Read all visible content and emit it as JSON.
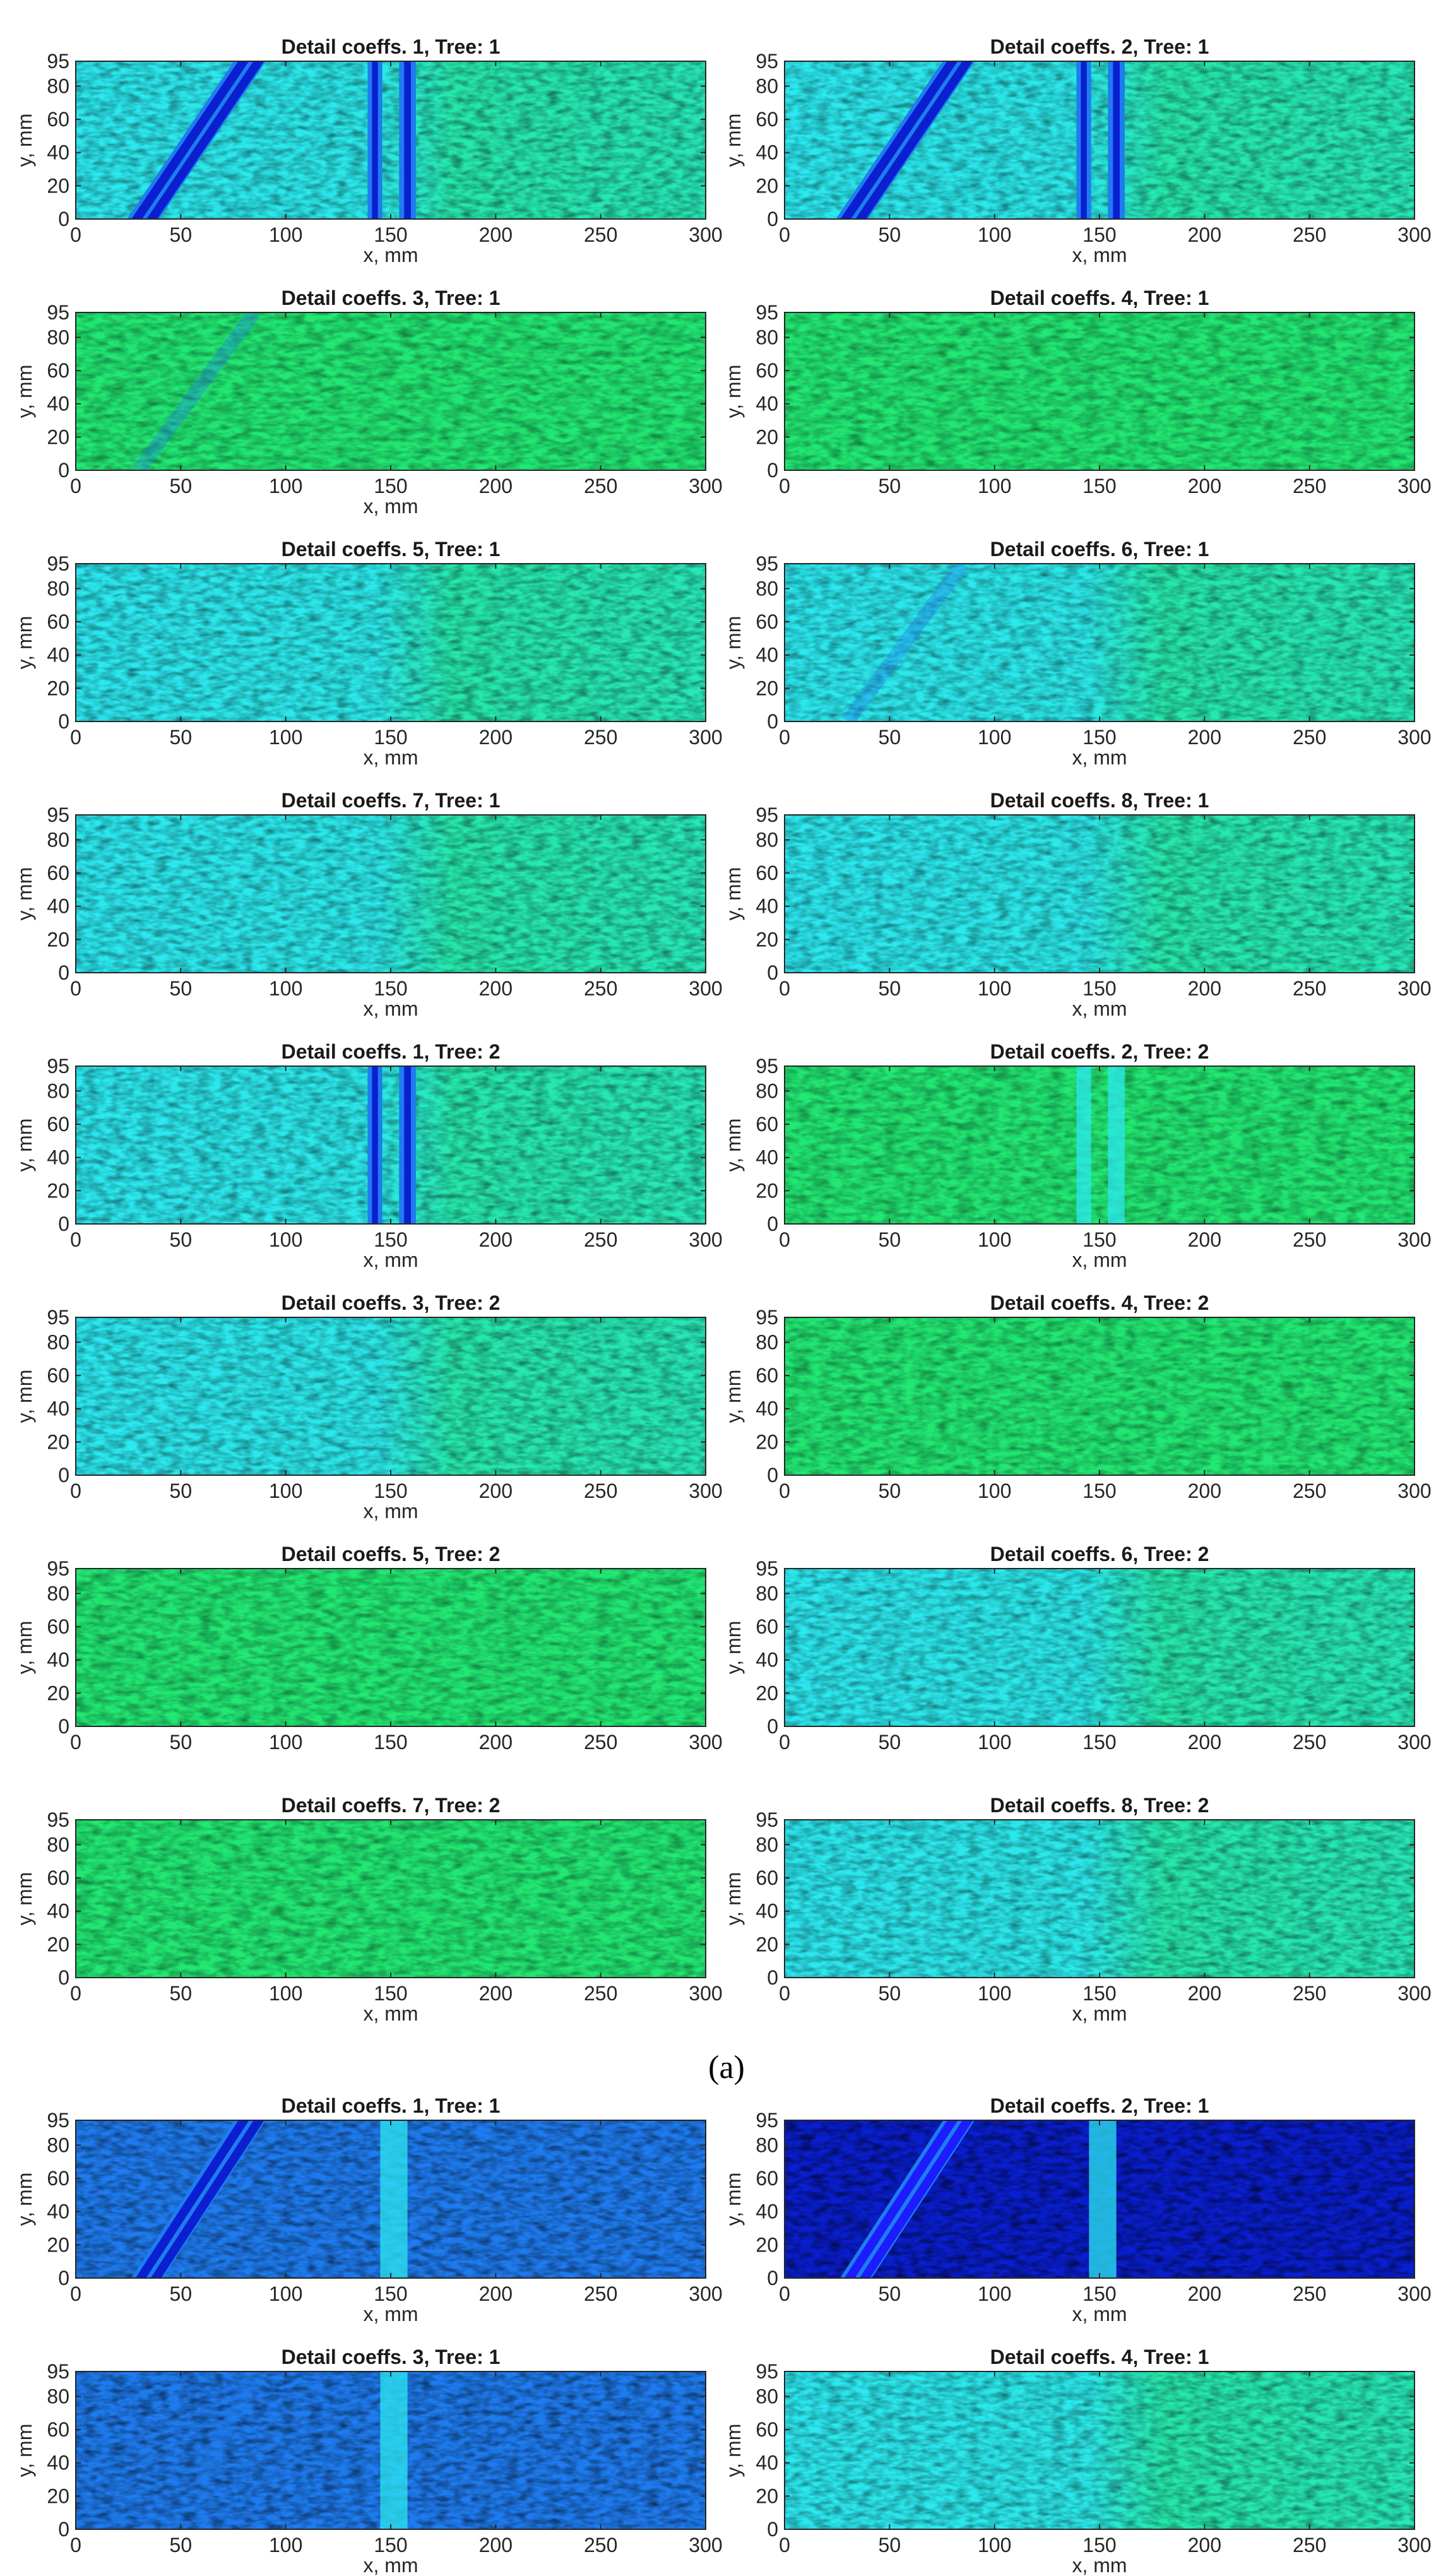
{
  "figure": {
    "subfigure_label_a": "(a)"
  },
  "colors": {
    "axis": "#262626",
    "background": "#ffffff",
    "colormap": "jet",
    "dark_blue": "#0a1fd0",
    "mid_blue": "#1f7cf0",
    "cyan": "#2ce8f0",
    "green": "#22e873"
  },
  "chart_data": [
    {
      "type": "heatmap",
      "title": "Detail coeffs. 1, Tree: 1",
      "xlabel": "x, mm",
      "ylabel": "y, mm",
      "xlim": [
        0,
        300
      ],
      "ylim": [
        0,
        95
      ],
      "xticks": [
        0,
        50,
        100,
        150,
        200,
        250,
        300
      ],
      "yticks": [
        0,
        20,
        40,
        60,
        80,
        95
      ],
      "colormap": "jet",
      "dominant_color": "cyan",
      "features": [
        {
          "kind": "diagonal_band",
          "from": [
            30,
            0
          ],
          "to": [
            85,
            95
          ]
        },
        {
          "kind": "vertical_band",
          "x": [
            139,
            146
          ]
        },
        {
          "kind": "vertical_band",
          "x": [
            154,
            162
          ]
        }
      ]
    },
    {
      "type": "heatmap",
      "title": "Detail coeffs. 2, Tree: 1",
      "xlabel": "x, mm",
      "ylabel": "y, mm",
      "xlim": [
        0,
        300
      ],
      "ylim": [
        0,
        95
      ],
      "xticks": [
        0,
        50,
        100,
        150,
        200,
        250,
        300
      ],
      "yticks": [
        0,
        20,
        40,
        60,
        80,
        95
      ],
      "colormap": "jet",
      "dominant_color": "cyan",
      "features": [
        {
          "kind": "diagonal_band",
          "from": [
            30,
            0
          ],
          "to": [
            85,
            95
          ]
        },
        {
          "kind": "vertical_band",
          "x": [
            139,
            146
          ]
        },
        {
          "kind": "vertical_band",
          "x": [
            154,
            162
          ]
        }
      ]
    },
    {
      "type": "heatmap",
      "title": "Detail coeffs. 3, Tree: 1",
      "xlabel": "x, mm",
      "ylabel": "y, mm",
      "xlim": [
        0,
        300
      ],
      "ylim": [
        0,
        95
      ],
      "xticks": [
        0,
        50,
        100,
        150,
        200,
        250,
        300
      ],
      "yticks": [
        0,
        20,
        40,
        60,
        80,
        95
      ],
      "colormap": "jet",
      "dominant_color": "green",
      "features": [
        {
          "kind": "faint_diagonal",
          "from": [
            30,
            0
          ],
          "to": [
            85,
            95
          ]
        }
      ]
    },
    {
      "type": "heatmap",
      "title": "Detail coeffs. 4, Tree: 1",
      "xlabel": "",
      "ylabel": "y, mm",
      "xlim": [
        0,
        300
      ],
      "ylim": [
        0,
        95
      ],
      "xticks": [
        0,
        50,
        100,
        150,
        200,
        250,
        300
      ],
      "yticks": [
        0,
        20,
        40,
        60,
        80,
        95
      ],
      "colormap": "jet",
      "dominant_color": "green",
      "features": []
    },
    {
      "type": "heatmap",
      "title": "Detail coeffs. 5, Tree: 1",
      "xlabel": "x, mm",
      "ylabel": "y, mm",
      "xlim": [
        0,
        300
      ],
      "ylim": [
        0,
        95
      ],
      "xticks": [
        0,
        50,
        100,
        150,
        200,
        250,
        300
      ],
      "yticks": [
        0,
        20,
        40,
        60,
        80,
        95
      ],
      "colormap": "jet",
      "dominant_color": "cyan",
      "features": []
    },
    {
      "type": "heatmap",
      "title": "Detail coeffs. 6, Tree: 1",
      "xlabel": "x, mm",
      "ylabel": "y, mm",
      "xlim": [
        0,
        300
      ],
      "ylim": [
        0,
        95
      ],
      "xticks": [
        0,
        50,
        100,
        150,
        200,
        250,
        300
      ],
      "yticks": [
        0,
        20,
        40,
        60,
        80,
        95
      ],
      "colormap": "jet",
      "dominant_color": "cyan",
      "features": [
        {
          "kind": "faint_diagonal",
          "from": [
            30,
            0
          ],
          "to": [
            85,
            95
          ]
        }
      ]
    },
    {
      "type": "heatmap",
      "title": "Detail coeffs. 7, Tree: 1",
      "xlabel": "x, mm",
      "ylabel": "y, mm",
      "xlim": [
        0,
        300
      ],
      "ylim": [
        0,
        95
      ],
      "xticks": [
        0,
        50,
        100,
        150,
        200,
        250,
        300
      ],
      "yticks": [
        0,
        20,
        40,
        60,
        80,
        95
      ],
      "colormap": "jet",
      "dominant_color": "cyan",
      "features": []
    },
    {
      "type": "heatmap",
      "title": "Detail coeffs. 8, Tree: 1",
      "xlabel": "x, mm",
      "ylabel": "y, mm",
      "xlim": [
        0,
        300
      ],
      "ylim": [
        0,
        95
      ],
      "xticks": [
        0,
        50,
        100,
        150,
        200,
        250,
        300
      ],
      "yticks": [
        0,
        20,
        40,
        60,
        80,
        95
      ],
      "colormap": "jet",
      "dominant_color": "cyan",
      "features": []
    },
    {
      "type": "heatmap",
      "title": "Detail coeffs. 1, Tree: 2",
      "xlabel": "x, mm",
      "ylabel": "y, mm",
      "xlim": [
        0,
        300
      ],
      "ylim": [
        0,
        95
      ],
      "xticks": [
        0,
        50,
        100,
        150,
        200,
        250,
        300
      ],
      "yticks": [
        0,
        20,
        40,
        60,
        80,
        95
      ],
      "colormap": "jet",
      "dominant_color": "cyan",
      "features": [
        {
          "kind": "vertical_band",
          "x": [
            139,
            146
          ]
        },
        {
          "kind": "vertical_band",
          "x": [
            154,
            162
          ]
        }
      ]
    },
    {
      "type": "heatmap",
      "title": "Detail coeffs. 2, Tree: 2",
      "xlabel": "x, mm",
      "ylabel": "y, mm",
      "xlim": [
        0,
        300
      ],
      "ylim": [
        0,
        95
      ],
      "xticks": [
        0,
        50,
        100,
        150,
        200,
        250,
        300
      ],
      "yticks": [
        0,
        20,
        40,
        60,
        80,
        95
      ],
      "colormap": "jet",
      "dominant_color": "green",
      "features": [
        {
          "kind": "vertical_band_light",
          "x": [
            139,
            146
          ]
        },
        {
          "kind": "vertical_band_light",
          "x": [
            154,
            162
          ]
        }
      ]
    },
    {
      "type": "heatmap",
      "title": "Detail coeffs. 3, Tree: 2",
      "xlabel": "x, mm",
      "ylabel": "y, mm",
      "xlim": [
        0,
        300
      ],
      "ylim": [
        0,
        95
      ],
      "xticks": [
        0,
        50,
        100,
        150,
        200,
        250,
        300
      ],
      "yticks": [
        0,
        20,
        40,
        60,
        80,
        95
      ],
      "colormap": "jet",
      "dominant_color": "cyan",
      "features": []
    },
    {
      "type": "heatmap",
      "title": "Detail coeffs. 4, Tree: 2",
      "xlabel": "",
      "ylabel": "y, mm",
      "xlim": [
        0,
        300
      ],
      "ylim": [
        0,
        95
      ],
      "xticks": [
        0,
        50,
        100,
        150,
        200,
        250,
        300
      ],
      "yticks": [
        0,
        20,
        40,
        60,
        80,
        95
      ],
      "colormap": "jet",
      "dominant_color": "green",
      "features": []
    },
    {
      "type": "heatmap",
      "title": "Detail coeffs. 5, Tree: 2",
      "xlabel": "",
      "ylabel": "y, mm",
      "xlim": [
        0,
        300
      ],
      "ylim": [
        0,
        95
      ],
      "xticks": [
        0,
        50,
        100,
        150,
        200,
        250,
        300
      ],
      "yticks": [
        0,
        20,
        40,
        60,
        80,
        95
      ],
      "colormap": "jet",
      "dominant_color": "green",
      "features": []
    },
    {
      "type": "heatmap",
      "title": "Detail coeffs. 6, Tree: 2",
      "xlabel": "",
      "ylabel": "y, mm",
      "xlim": [
        0,
        300
      ],
      "ylim": [
        0,
        95
      ],
      "xticks": [
        0,
        50,
        100,
        150,
        200,
        250,
        300
      ],
      "yticks": [
        0,
        20,
        40,
        60,
        80,
        95
      ],
      "colormap": "jet",
      "dominant_color": "cyan",
      "features": []
    },
    {
      "type": "heatmap",
      "title": "Detail coeffs. 7, Tree: 2",
      "xlabel": "x, mm",
      "ylabel": "y, mm",
      "xlim": [
        0,
        300
      ],
      "ylim": [
        0,
        95
      ],
      "xticks": [
        0,
        50,
        100,
        150,
        200,
        250,
        300
      ],
      "yticks": [
        0,
        20,
        40,
        60,
        80,
        95
      ],
      "colormap": "jet",
      "dominant_color": "green",
      "features": []
    },
    {
      "type": "heatmap",
      "title": "Detail coeffs. 8, Tree: 2",
      "xlabel": "x, mm",
      "ylabel": "y, mm",
      "xlim": [
        0,
        300
      ],
      "ylim": [
        0,
        95
      ],
      "xticks": [
        0,
        50,
        100,
        150,
        200,
        250,
        300
      ],
      "yticks": [
        0,
        20,
        40,
        60,
        80,
        95
      ],
      "colormap": "jet",
      "dominant_color": "cyan",
      "features": []
    },
    {
      "type": "heatmap",
      "title": "Detail coeffs. 1, Tree: 1",
      "xlabel": "x, mm",
      "ylabel": "y, mm",
      "xlim": [
        0,
        300
      ],
      "ylim": [
        0,
        95
      ],
      "xticks": [
        0,
        50,
        100,
        150,
        200,
        250,
        300
      ],
      "yticks": [
        0,
        20,
        40,
        60,
        80,
        95
      ],
      "colormap": "jet",
      "dominant_color": "mid_blue",
      "features": [
        {
          "kind": "diagonal_band",
          "from": [
            32,
            0
          ],
          "to": [
            85,
            95
          ]
        },
        {
          "kind": "vertical_band_light",
          "x": [
            145,
            158
          ]
        }
      ]
    },
    {
      "type": "heatmap",
      "title": "Detail coeffs. 2, Tree: 1",
      "xlabel": "x, mm",
      "ylabel": "y, mm",
      "xlim": [
        0,
        300
      ],
      "ylim": [
        0,
        95
      ],
      "xticks": [
        0,
        50,
        100,
        150,
        200,
        250,
        300
      ],
      "yticks": [
        0,
        20,
        40,
        60,
        80,
        95
      ],
      "colormap": "jet",
      "dominant_color": "dark_blue",
      "features": [
        {
          "kind": "diagonal_band",
          "from": [
            32,
            0
          ],
          "to": [
            85,
            95
          ]
        },
        {
          "kind": "vertical_band_light",
          "x": [
            145,
            158
          ]
        }
      ]
    },
    {
      "type": "heatmap",
      "title": "Detail coeffs. 3, Tree: 1",
      "xlabel": "x, mm",
      "ylabel": "y, mm",
      "xlim": [
        0,
        300
      ],
      "ylim": [
        0,
        95
      ],
      "xticks": [
        0,
        50,
        100,
        150,
        200,
        250,
        300
      ],
      "yticks": [
        0,
        20,
        40,
        60,
        80,
        95
      ],
      "colormap": "jet",
      "dominant_color": "mid_blue",
      "features": [
        {
          "kind": "faint_diagonal",
          "from": [
            60,
            30
          ],
          "to": [
            85,
            95
          ]
        },
        {
          "kind": "vertical_band_light",
          "x": [
            145,
            158
          ]
        }
      ]
    },
    {
      "type": "heatmap",
      "title": "Detail coeffs. 4, Tree: 1",
      "xlabel": "x, mm",
      "ylabel": "y, mm",
      "xlim": [
        0,
        300
      ],
      "ylim": [
        0,
        95
      ],
      "xticks": [
        0,
        50,
        100,
        150,
        200,
        250,
        300
      ],
      "yticks": [
        0,
        20,
        40,
        60,
        80,
        95
      ],
      "colormap": "jet",
      "dominant_color": "cyan",
      "features": []
    }
  ]
}
